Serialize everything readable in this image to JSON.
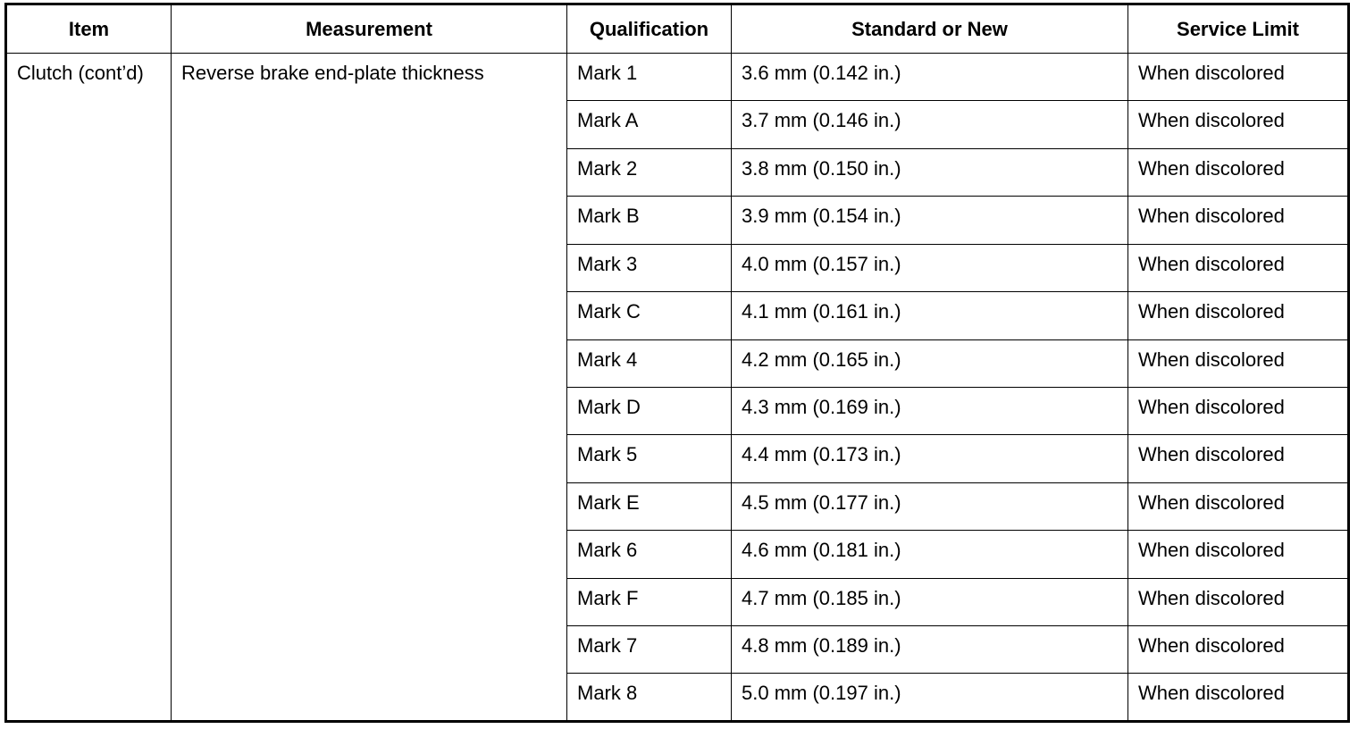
{
  "headers": [
    "Item",
    "Measurement",
    "Qualification",
    "Standard or New",
    "Service Limit"
  ],
  "item": "Clutch (cont’d)",
  "measurement": "Reverse brake end-plate thickness",
  "rows": [
    {
      "qualification": "Mark 1",
      "standard": "3.6 mm (0.142 in.)",
      "limit": "When discolored"
    },
    {
      "qualification": "Mark A",
      "standard": "3.7 mm (0.146 in.)",
      "limit": "When discolored"
    },
    {
      "qualification": "Mark 2",
      "standard": "3.8 mm (0.150 in.)",
      "limit": "When discolored"
    },
    {
      "qualification": "Mark B",
      "standard": "3.9 mm (0.154 in.)",
      "limit": "When discolored"
    },
    {
      "qualification": "Mark 3",
      "standard": "4.0 mm (0.157 in.)",
      "limit": "When discolored"
    },
    {
      "qualification": "Mark C",
      "standard": "4.1 mm (0.161 in.)",
      "limit": "When discolored"
    },
    {
      "qualification": "Mark 4",
      "standard": "4.2 mm (0.165 in.)",
      "limit": "When discolored"
    },
    {
      "qualification": "Mark D",
      "standard": "4.3 mm (0.169 in.)",
      "limit": "When discolored"
    },
    {
      "qualification": "Mark 5",
      "standard": "4.4 mm (0.173 in.)",
      "limit": "When discolored"
    },
    {
      "qualification": "Mark E",
      "standard": "4.5 mm (0.177 in.)",
      "limit": "When discolored"
    },
    {
      "qualification": "Mark 6",
      "standard": "4.6 mm (0.181 in.)",
      "limit": "When discolored"
    },
    {
      "qualification": "Mark F",
      "standard": "4.7 mm (0.185 in.)",
      "limit": "When discolored"
    },
    {
      "qualification": "Mark 7",
      "standard": "4.8 mm (0.189 in.)",
      "limit": "When discolored"
    },
    {
      "qualification": "Mark 8",
      "standard": "5.0 mm (0.197 in.)",
      "limit": "When discolored"
    }
  ]
}
